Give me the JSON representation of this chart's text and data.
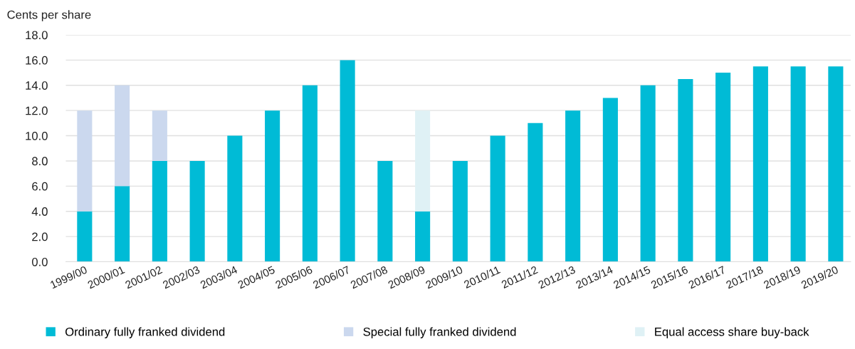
{
  "chart_data": {
    "type": "bar",
    "stacked": true,
    "ylabel": "Cents per share",
    "categories": [
      "1999/00",
      "2000/01",
      "2001/02",
      "2002/03",
      "2003/04",
      "2004/05",
      "2005/06",
      "2006/07",
      "2007/08",
      "2008/09",
      "2009/10",
      "2010/11",
      "2011/12",
      "2012/13",
      "2013/14",
      "2014/15",
      "2015/16",
      "2016/17",
      "2017/18",
      "2018/19",
      "2019/20"
    ],
    "series": [
      {
        "name": "Ordinary fully franked dividend",
        "color": "#00bbd6",
        "values": [
          4,
          6,
          8,
          8,
          10,
          12,
          14,
          16,
          8,
          4,
          8,
          10,
          11,
          12,
          13,
          14,
          14.5,
          15,
          15.5,
          15.5,
          15.5
        ]
      },
      {
        "name": "Special fully franked dividend",
        "color": "#cbd8ee",
        "values": [
          8,
          8,
          4,
          null,
          null,
          null,
          null,
          null,
          null,
          null,
          null,
          null,
          null,
          null,
          null,
          null,
          null,
          null,
          null,
          null,
          null
        ]
      },
      {
        "name": "Equal access share buy-back",
        "color": "#dff1f5",
        "values": [
          null,
          null,
          null,
          null,
          null,
          null,
          null,
          null,
          null,
          8,
          null,
          null,
          null,
          null,
          null,
          null,
          null,
          null,
          null,
          null,
          null
        ]
      }
    ],
    "ylim": [
      0,
      18
    ],
    "yticks": [
      {
        "value": 0,
        "label": "0.0"
      },
      {
        "value": 2,
        "label": "2.0"
      },
      {
        "value": 4,
        "label": "4.0"
      },
      {
        "value": 6,
        "label": "6.0"
      },
      {
        "value": 8,
        "label": "8.0"
      },
      {
        "value": 10,
        "label": "10.0"
      },
      {
        "value": 12,
        "label": "12.0"
      },
      {
        "value": 14,
        "label": "14.0"
      },
      {
        "value": 16,
        "label": "16.0"
      },
      {
        "value": 18,
        "label": "18.0"
      }
    ],
    "grid": "y",
    "legend": "bottom"
  }
}
